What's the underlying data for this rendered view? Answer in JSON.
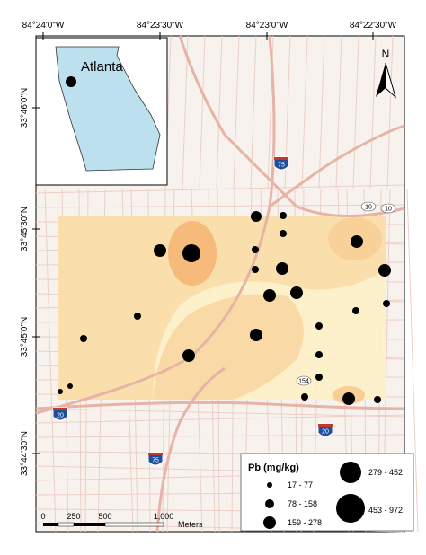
{
  "coordinates": {
    "longitude": [
      "84°24'0\"W",
      "84°23'30\"W",
      "84°23'0\"W",
      "84°22'30\"W"
    ],
    "latitude": [
      "33°46'0\"N",
      "33°45'30\"N",
      "33°45'0\"N",
      "33°44'30\"N"
    ]
  },
  "inset": {
    "label": "Atlanta"
  },
  "north_arrow": "N",
  "road_shields": [
    "75",
    "20",
    "10",
    "154"
  ],
  "legend": {
    "title": "Pb (mg/kg)",
    "classes": [
      "17 - 77",
      "78 - 158",
      "159 - 278",
      "279 - 452",
      "453 - 972"
    ]
  },
  "scale_bar": {
    "labels": [
      "0",
      "250",
      "500",
      "1,000"
    ],
    "unit": "Meters"
  }
}
